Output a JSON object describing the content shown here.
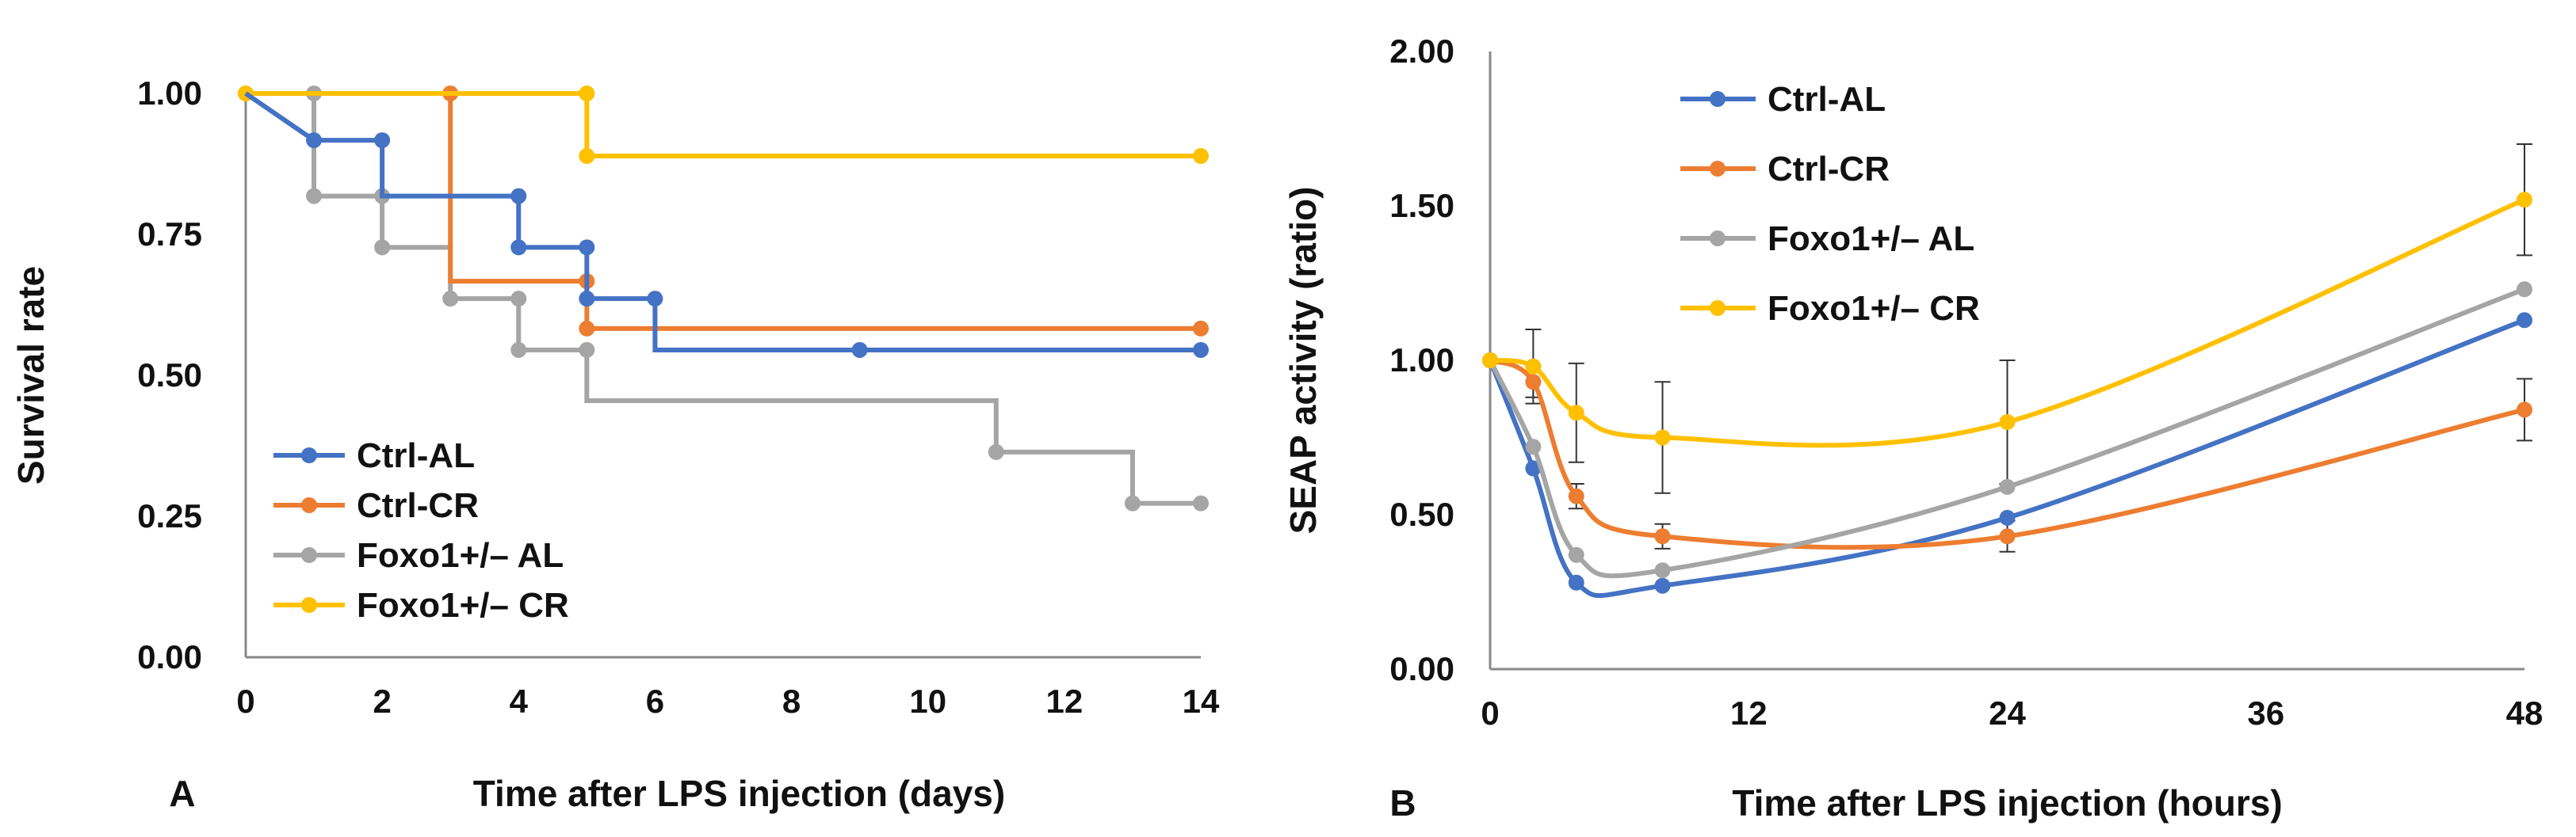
{
  "colors": {
    "ctrl_al": "#4472C4",
    "ctrl_cr": "#ED7D31",
    "foxo_al": "#A5A5A5",
    "foxo_cr": "#FFC000",
    "axis": "#888888",
    "text": "#111111"
  },
  "chart_data": [
    {
      "panel_label": "A",
      "type": "step",
      "title": "",
      "xlabel": "Time after LPS injection (days)",
      "ylabel": "Survival rate",
      "xlim": [
        0,
        14
      ],
      "ylim": [
        0,
        1
      ],
      "x_ticks": [
        "0",
        "2",
        "4",
        "6",
        "8",
        "10",
        "12",
        "14"
      ],
      "y_ticks": [
        "0.00",
        "0.25",
        "0.50",
        "0.75",
        "1.00"
      ],
      "legend": {
        "placement": "bottom-left"
      },
      "series": [
        {
          "name": "Ctrl-AL",
          "color": "#4472C4",
          "points": [
            [
              0,
              1.0
            ],
            [
              1,
              0.917
            ],
            [
              2,
              0.917
            ],
            [
              2,
              0.818
            ],
            [
              4,
              0.818
            ],
            [
              4,
              0.727
            ],
            [
              5,
              0.727
            ],
            [
              5,
              0.636
            ],
            [
              6,
              0.636
            ],
            [
              6,
              0.545
            ],
            [
              9,
              0.545
            ],
            [
              14,
              0.545
            ]
          ],
          "markers": [
            [
              1,
              0.917
            ],
            [
              2,
              0.917
            ],
            [
              4,
              0.818
            ],
            [
              4,
              0.727
            ],
            [
              5,
              0.727
            ],
            [
              5,
              0.636
            ],
            [
              6,
              0.636
            ],
            [
              9,
              0.545
            ],
            [
              14,
              0.545
            ]
          ]
        },
        {
          "name": "Ctrl-CR",
          "color": "#ED7D31",
          "points": [
            [
              0,
              1.0
            ],
            [
              3,
              1.0
            ],
            [
              3,
              0.667
            ],
            [
              5,
              0.667
            ],
            [
              5,
              0.583
            ],
            [
              14,
              0.583
            ]
          ],
          "markers": [
            [
              3,
              1.0
            ],
            [
              5,
              0.667
            ],
            [
              5,
              0.583
            ],
            [
              14,
              0.583
            ]
          ]
        },
        {
          "name": "Foxo1+/– AL",
          "color": "#A5A5A5",
          "points": [
            [
              0,
              1.0
            ],
            [
              1,
              1.0
            ],
            [
              1,
              0.818
            ],
            [
              2,
              0.818
            ],
            [
              2,
              0.727
            ],
            [
              3,
              0.727
            ],
            [
              3,
              0.636
            ],
            [
              4,
              0.636
            ],
            [
              4,
              0.545
            ],
            [
              5,
              0.545
            ],
            [
              5,
              0.455
            ],
            [
              11,
              0.455
            ],
            [
              11,
              0.364
            ],
            [
              13,
              0.364
            ],
            [
              13,
              0.273
            ],
            [
              14,
              0.273
            ]
          ],
          "markers": [
            [
              1,
              1.0
            ],
            [
              1,
              0.818
            ],
            [
              2,
              0.818
            ],
            [
              2,
              0.727
            ],
            [
              3,
              0.636
            ],
            [
              4,
              0.636
            ],
            [
              4,
              0.545
            ],
            [
              5,
              0.545
            ],
            [
              11,
              0.364
            ],
            [
              13,
              0.273
            ],
            [
              14,
              0.273
            ]
          ]
        },
        {
          "name": "Foxo1+/– CR",
          "color": "#FFC000",
          "points": [
            [
              0,
              1.0
            ],
            [
              5,
              1.0
            ],
            [
              5,
              0.889
            ],
            [
              14,
              0.889
            ]
          ],
          "markers": [
            [
              0,
              1.0
            ],
            [
              5,
              1.0
            ],
            [
              5,
              0.889
            ],
            [
              14,
              0.889
            ]
          ]
        }
      ]
    },
    {
      "panel_label": "B",
      "type": "line",
      "title": "",
      "xlabel": "Time after LPS injection (hours)",
      "ylabel": "SEAP activity (ratio)",
      "xlim": [
        0,
        48
      ],
      "ylim": [
        0,
        2
      ],
      "x_ticks": [
        "0",
        "12",
        "24",
        "36",
        "48"
      ],
      "y_ticks": [
        "0.00",
        "0.50",
        "1.00",
        "1.50",
        "2.00"
      ],
      "legend": {
        "placement": "top-left"
      },
      "series": [
        {
          "name": "Ctrl-AL",
          "color": "#4472C4",
          "x": [
            0,
            2,
            4,
            8,
            24,
            48
          ],
          "values": [
            1.0,
            0.65,
            0.28,
            0.27,
            0.49,
            1.13
          ]
        },
        {
          "name": "Ctrl-CR",
          "color": "#ED7D31",
          "x": [
            0,
            2,
            4,
            8,
            24,
            48
          ],
          "values": [
            1.0,
            0.93,
            0.56,
            0.43,
            0.43,
            0.84
          ],
          "err": [
            0,
            0.05,
            0.04,
            0.04,
            0.05,
            0.1
          ]
        },
        {
          "name": "Foxo1+/– AL",
          "color": "#A5A5A5",
          "x": [
            0,
            2,
            4,
            8,
            24,
            48
          ],
          "values": [
            1.0,
            0.72,
            0.37,
            0.32,
            0.59,
            1.23
          ]
        },
        {
          "name": "Foxo1+/– CR",
          "color": "#FFC000",
          "x": [
            0,
            2,
            4,
            8,
            24,
            48
          ],
          "values": [
            1.0,
            0.98,
            0.83,
            0.75,
            0.8,
            1.52
          ],
          "err": [
            0,
            0.12,
            0.16,
            0.18,
            0.2,
            0.18
          ]
        }
      ]
    }
  ]
}
